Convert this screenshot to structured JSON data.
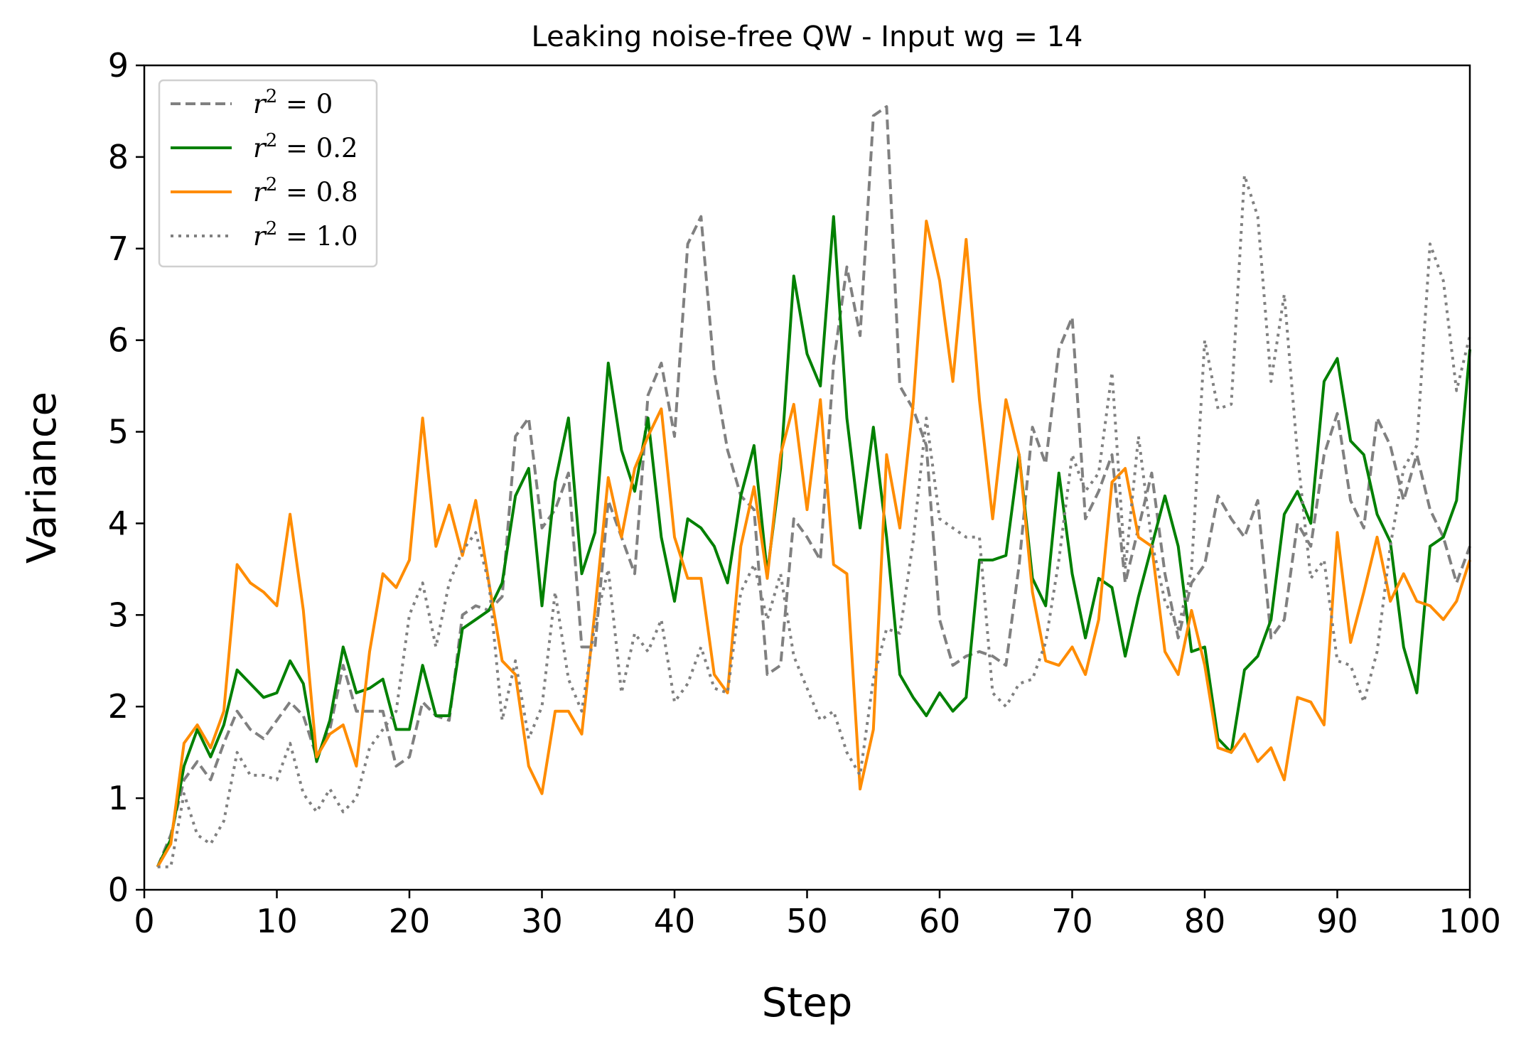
{
  "chart_data": {
    "type": "line",
    "title": "Leaking noise-free QW - Input wg = 14",
    "xlabel": "Step",
    "ylabel": "Variance",
    "xlim": [
      0,
      100
    ],
    "ylim": [
      0,
      9
    ],
    "xticks": [
      0,
      10,
      20,
      30,
      40,
      50,
      60,
      70,
      80,
      90,
      100
    ],
    "yticks": [
      0,
      1,
      2,
      3,
      4,
      5,
      6,
      7,
      8,
      9
    ],
    "grid": false,
    "legend_position": "top-left",
    "x": [
      1,
      2,
      3,
      4,
      5,
      6,
      7,
      8,
      9,
      10,
      11,
      12,
      13,
      14,
      15,
      16,
      17,
      18,
      19,
      20,
      21,
      22,
      23,
      24,
      25,
      26,
      27,
      28,
      29,
      30,
      31,
      32,
      33,
      34,
      35,
      36,
      37,
      38,
      39,
      40,
      41,
      42,
      43,
      44,
      45,
      46,
      47,
      48,
      49,
      50,
      51,
      52,
      53,
      54,
      55,
      56,
      57,
      58,
      59,
      60,
      61,
      62,
      63,
      64,
      65,
      66,
      67,
      68,
      69,
      70,
      71,
      72,
      73,
      74,
      75,
      76,
      77,
      78,
      79,
      80,
      81,
      82,
      83,
      84,
      85,
      86,
      87,
      88,
      89,
      90,
      91,
      92,
      93,
      94,
      95,
      96,
      97,
      98,
      99,
      100
    ],
    "series": [
      {
        "name": "r² = 0",
        "legend": {
          "base": "r",
          "sup": "2",
          "rest": " = 0"
        },
        "color": "#808080",
        "dash": "dashed",
        "values": [
          0.25,
          0.6,
          1.2,
          1.4,
          1.2,
          1.6,
          1.95,
          1.75,
          1.65,
          1.85,
          2.05,
          1.9,
          1.45,
          1.75,
          2.45,
          1.95,
          1.95,
          1.95,
          1.35,
          1.45,
          2.05,
          1.9,
          1.85,
          3.0,
          3.1,
          3.05,
          3.2,
          4.95,
          5.15,
          3.95,
          4.15,
          4.55,
          2.65,
          2.65,
          4.25,
          3.85,
          3.45,
          5.4,
          5.75,
          4.95,
          7.05,
          7.35,
          5.65,
          4.8,
          4.3,
          4.15,
          2.35,
          2.45,
          4.05,
          3.85,
          3.6,
          5.75,
          6.8,
          6.05,
          8.45,
          8.55,
          5.5,
          5.25,
          4.85,
          2.95,
          2.45,
          2.55,
          2.6,
          2.55,
          2.45,
          3.55,
          5.05,
          4.65,
          5.9,
          6.25,
          4.05,
          4.35,
          4.75,
          3.35,
          3.95,
          4.55,
          3.45,
          2.75,
          3.35,
          3.55,
          4.3,
          4.05,
          3.85,
          4.25,
          2.75,
          2.95,
          4.0,
          3.75,
          4.75,
          5.2,
          4.25,
          3.95,
          5.15,
          4.85,
          4.25,
          4.75,
          4.15,
          3.85,
          3.35,
          3.75
        ]
      },
      {
        "name": "r² = 0.2",
        "legend": {
          "base": "r",
          "sup": "2",
          "rest": " = 0.2"
        },
        "color": "#008000",
        "dash": "solid",
        "values": [
          0.25,
          0.55,
          1.35,
          1.75,
          1.45,
          1.8,
          2.4,
          2.25,
          2.1,
          2.15,
          2.5,
          2.25,
          1.4,
          1.85,
          2.65,
          2.15,
          2.2,
          2.3,
          1.75,
          1.75,
          2.45,
          1.9,
          1.9,
          2.85,
          2.95,
          3.05,
          3.35,
          4.3,
          4.6,
          3.1,
          4.45,
          5.15,
          3.45,
          3.9,
          5.75,
          4.8,
          4.35,
          5.15,
          3.85,
          3.15,
          4.05,
          3.95,
          3.75,
          3.35,
          4.3,
          4.85,
          3.45,
          4.6,
          6.7,
          5.85,
          5.5,
          7.35,
          5.15,
          3.95,
          5.05,
          3.85,
          2.35,
          2.1,
          1.9,
          2.15,
          1.95,
          2.1,
          3.6,
          3.6,
          3.65,
          4.75,
          3.4,
          3.1,
          4.55,
          3.45,
          2.75,
          3.4,
          3.3,
          2.55,
          3.2,
          3.75,
          4.3,
          3.75,
          2.6,
          2.65,
          1.65,
          1.5,
          2.4,
          2.55,
          2.95,
          4.1,
          4.35,
          4.0,
          5.55,
          5.8,
          4.9,
          4.75,
          4.1,
          3.8,
          2.65,
          2.15,
          3.75,
          3.85,
          4.25,
          5.9
        ]
      },
      {
        "name": "r² = 0.8",
        "legend": {
          "base": "r",
          "sup": "2",
          "rest": " = 0.8"
        },
        "color": "#ff8c00",
        "dash": "solid",
        "values": [
          0.25,
          0.5,
          1.6,
          1.8,
          1.55,
          1.95,
          3.55,
          3.35,
          3.25,
          3.1,
          4.1,
          3.05,
          1.45,
          1.7,
          1.8,
          1.35,
          2.6,
          3.45,
          3.3,
          3.6,
          5.15,
          3.75,
          4.2,
          3.65,
          4.25,
          3.35,
          2.5,
          2.35,
          1.35,
          1.05,
          1.95,
          1.95,
          1.7,
          3.05,
          4.5,
          3.85,
          4.6,
          4.95,
          5.25,
          3.85,
          3.4,
          3.4,
          2.35,
          2.15,
          3.75,
          4.4,
          3.4,
          4.75,
          5.3,
          4.15,
          5.35,
          3.55,
          3.45,
          1.1,
          1.75,
          4.75,
          3.95,
          5.3,
          7.3,
          6.65,
          5.55,
          7.1,
          5.35,
          4.05,
          5.35,
          4.75,
          3.25,
          2.5,
          2.45,
          2.65,
          2.35,
          2.95,
          4.45,
          4.6,
          3.85,
          3.75,
          2.6,
          2.35,
          3.05,
          2.45,
          1.55,
          1.5,
          1.7,
          1.4,
          1.55,
          1.2,
          2.1,
          2.05,
          1.8,
          3.9,
          2.7,
          3.25,
          3.85,
          3.15,
          3.45,
          3.15,
          3.1,
          2.95,
          3.15,
          3.6
        ]
      },
      {
        "name": "r² = 1.0",
        "legend": {
          "base": "r",
          "sup": "2",
          "rest": " = 1.0"
        },
        "color": "#808080",
        "dash": "dotted",
        "values": [
          0.25,
          0.25,
          1.05,
          0.6,
          0.5,
          0.75,
          1.5,
          1.25,
          1.25,
          1.2,
          1.6,
          1.05,
          0.85,
          1.1,
          0.85,
          1.0,
          1.55,
          1.75,
          1.95,
          3.0,
          3.35,
          2.65,
          3.35,
          3.7,
          3.9,
          3.35,
          1.85,
          2.5,
          1.65,
          2.0,
          3.25,
          2.3,
          1.95,
          2.9,
          3.5,
          2.15,
          2.8,
          2.6,
          2.95,
          2.05,
          2.25,
          2.65,
          2.2,
          2.15,
          3.25,
          3.55,
          2.95,
          3.45,
          2.55,
          2.2,
          1.85,
          1.95,
          1.5,
          1.25,
          2.3,
          2.85,
          2.8,
          3.8,
          5.15,
          4.05,
          3.95,
          3.85,
          3.85,
          2.15,
          2.0,
          2.25,
          2.3,
          2.7,
          3.6,
          4.75,
          4.35,
          4.55,
          5.65,
          3.5,
          4.95,
          3.8,
          3.15,
          2.85,
          3.5,
          6.0,
          5.25,
          5.3,
          7.8,
          7.35,
          5.55,
          6.5,
          4.75,
          3.4,
          3.6,
          2.5,
          2.45,
          2.05,
          2.6,
          3.75,
          4.6,
          4.85,
          7.05,
          6.65,
          5.45,
          6.05
        ]
      }
    ]
  }
}
